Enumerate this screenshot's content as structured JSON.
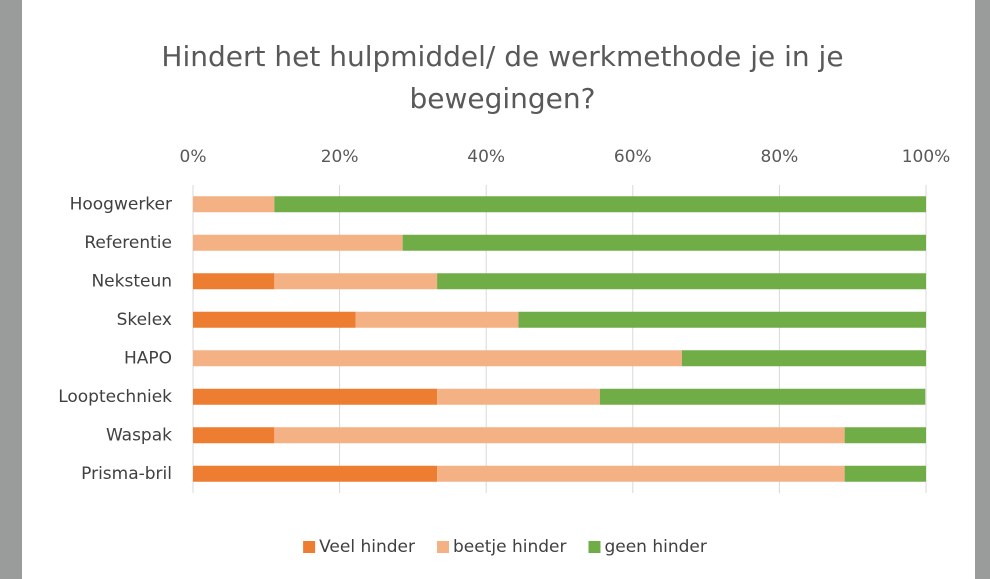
{
  "chart_data": {
    "type": "stacked-bar-horizontal",
    "title": "Hindert het hulpmiddel/ de werkmethode je in je bewegingen?",
    "categories": [
      "Hoogwerker",
      "Referentie",
      "Neksteun",
      "Skelex",
      "HAPO",
      "Looptechniek",
      "Waspak",
      "Prisma-bril"
    ],
    "series": [
      {
        "name": "Veel hinder",
        "color": "#ed7d31",
        "values": [
          0,
          0,
          11.1,
          22.2,
          0,
          33.3,
          11.1,
          33.3
        ]
      },
      {
        "name": "beetje hinder",
        "color": "#f4b183",
        "values": [
          11.1,
          28.6,
          22.2,
          22.2,
          66.7,
          22.2,
          77.8,
          55.6
        ]
      },
      {
        "name": "geen hinder",
        "color": "#70ad47",
        "values": [
          88.9,
          71.4,
          66.7,
          55.6,
          33.3,
          44.4,
          11.1,
          11.1
        ]
      }
    ],
    "xlim": [
      0,
      100
    ],
    "xticks": [
      {
        "value": 0,
        "label": "0%"
      },
      {
        "value": 20,
        "label": "20%"
      },
      {
        "value": 40,
        "label": "40%"
      },
      {
        "value": 60,
        "label": "60%"
      },
      {
        "value": 80,
        "label": "80%"
      },
      {
        "value": 100,
        "label": "100%"
      }
    ],
    "grid": true,
    "legend": "bottom"
  }
}
